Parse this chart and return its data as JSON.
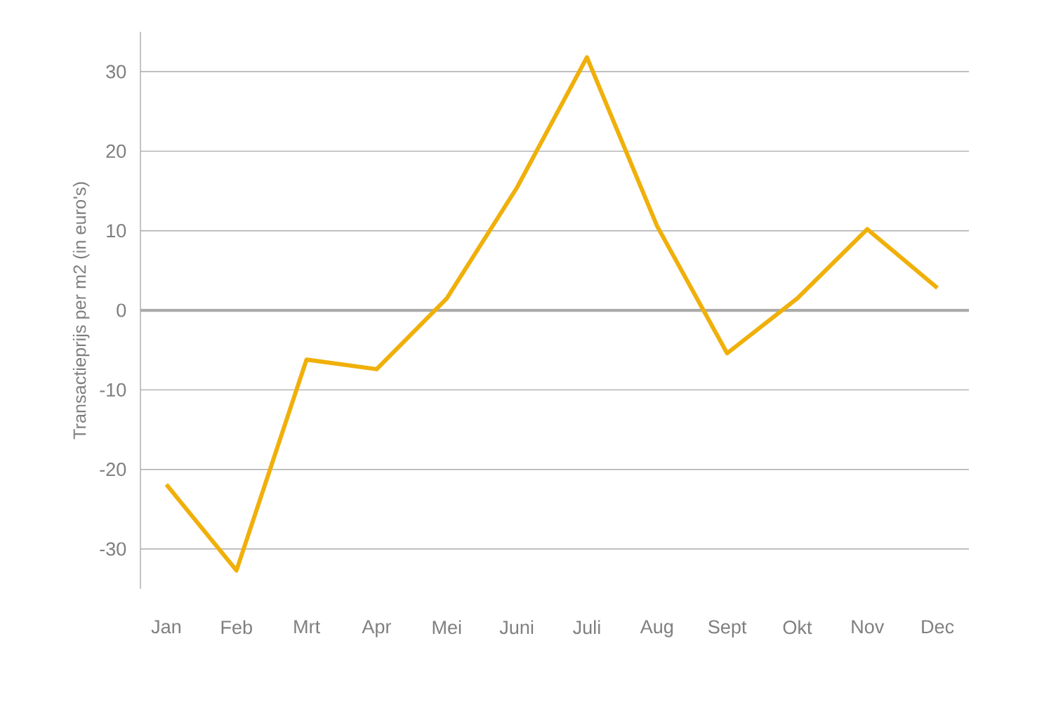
{
  "chart_data": {
    "type": "line",
    "ylabel": "Transactieprijs per m2 (in euro's)",
    "categories": [
      "Jan",
      "Feb",
      "Mrt",
      "Apr",
      "Mei",
      "Juni",
      "Juli",
      "Aug",
      "Sept",
      "Okt",
      "Nov",
      "Dec"
    ],
    "values": [
      -21.9,
      -32.7,
      -6.2,
      -7.4,
      1.5,
      15.4,
      31.8,
      10.6,
      -5.4,
      1.5,
      10.2,
      2.8
    ],
    "color": "#f0b00a",
    "ylim": [
      -35,
      35
    ],
    "yticks": [
      -30,
      -20,
      -10,
      0,
      10,
      20,
      30
    ],
    "grid": "y",
    "marker": "none",
    "line_style": "solid"
  }
}
